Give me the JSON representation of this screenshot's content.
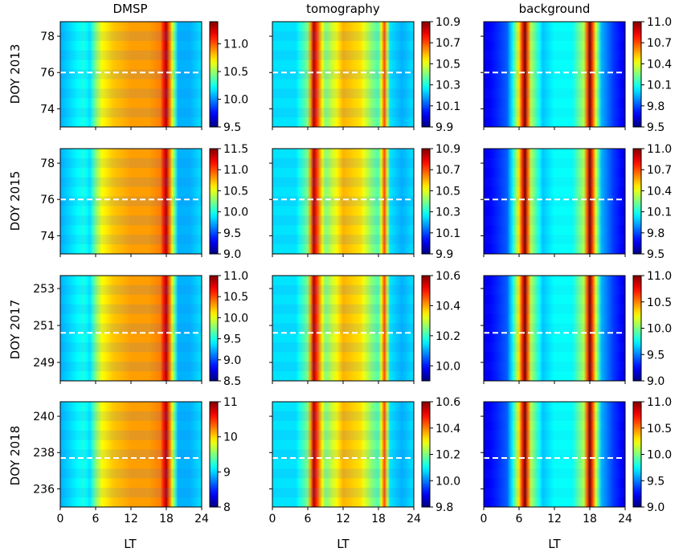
{
  "columns": [
    "DMSP",
    "tomography",
    "background"
  ],
  "rows": [
    "DOY 2013",
    "DOY 2015",
    "DOY 2017",
    "DOY 2018"
  ],
  "x_axis_label": "LT",
  "x_ticks": [
    0,
    6,
    12,
    18,
    24
  ],
  "chart_data": {
    "type": "heatmap",
    "xlabel": "LT",
    "xlim": [
      0,
      24
    ],
    "colormap": "jet",
    "row_yticks": [
      [
        74,
        76,
        78
      ],
      [
        74,
        76,
        78
      ],
      [
        249,
        251,
        253
      ],
      [
        236,
        238,
        240
      ]
    ],
    "row_ylim": [
      [
        73,
        78.8
      ],
      [
        73,
        78.8
      ],
      [
        248,
        253.7
      ],
      [
        235,
        240.8
      ]
    ],
    "dashed_line_y": [
      76,
      76,
      250.6,
      237.7
    ],
    "panels": [
      [
        {
          "column": "DMSP",
          "row": "DOY 2013",
          "cbar_ticks": [
            9.5,
            10.0,
            10.5,
            11.0
          ],
          "vmin": 9.5,
          "vmax": 11.4
        },
        {
          "column": "tomography",
          "row": "DOY 2013",
          "cbar_ticks": [
            9.9,
            10.1,
            10.3,
            10.5,
            10.7,
            10.9
          ],
          "vmin": 9.9,
          "vmax": 10.9
        },
        {
          "column": "background",
          "row": "DOY 2013",
          "cbar_ticks": [
            9.5,
            9.8,
            10.1,
            10.4,
            10.7,
            11.0
          ],
          "vmin": 9.5,
          "vmax": 11.0
        }
      ],
      [
        {
          "column": "DMSP",
          "row": "DOY 2015",
          "cbar_ticks": [
            9.0,
            9.5,
            10.0,
            10.5,
            11.0,
            11.5
          ],
          "vmin": 9.0,
          "vmax": 11.5
        },
        {
          "column": "tomography",
          "row": "DOY 2015",
          "cbar_ticks": [
            9.9,
            10.1,
            10.3,
            10.5,
            10.7,
            10.9
          ],
          "vmin": 9.9,
          "vmax": 10.9
        },
        {
          "column": "background",
          "row": "DOY 2015",
          "cbar_ticks": [
            9.5,
            9.8,
            10.1,
            10.4,
            10.7,
            11.0
          ],
          "vmin": 9.5,
          "vmax": 11.0
        }
      ],
      [
        {
          "column": "DMSP",
          "row": "DOY 2017",
          "cbar_ticks": [
            8.5,
            9.0,
            9.5,
            10.0,
            10.5,
            11.0
          ],
          "vmin": 8.5,
          "vmax": 11.0
        },
        {
          "column": "tomography",
          "row": "DOY 2017",
          "cbar_ticks": [
            10.0,
            10.2,
            10.4,
            10.6
          ],
          "vmin": 9.9,
          "vmax": 10.6
        },
        {
          "column": "background",
          "row": "DOY 2017",
          "cbar_ticks": [
            9.0,
            9.5,
            10.0,
            10.5,
            11.0
          ],
          "vmin": 9.0,
          "vmax": 11.0
        }
      ],
      [
        {
          "column": "DMSP",
          "row": "DOY 2018",
          "cbar_ticks": [
            8,
            9,
            10,
            11
          ],
          "vmin": 8,
          "vmax": 11
        },
        {
          "column": "tomography",
          "row": "DOY 2018",
          "cbar_ticks": [
            9.8,
            10.0,
            10.2,
            10.4,
            10.6
          ],
          "vmin": 9.8,
          "vmax": 10.6
        },
        {
          "column": "background",
          "row": "DOY 2018",
          "cbar_ticks": [
            9.0,
            9.5,
            10.0,
            10.5,
            11.0
          ],
          "vmin": 9.0,
          "vmax": 11.0
        }
      ]
    ],
    "profiles": {
      "DMSP": {
        "LT": [
          0,
          2,
          4,
          5,
          6,
          7,
          9,
          12,
          15,
          17,
          18,
          19,
          20,
          22,
          24
        ],
        "frac": [
          0.3,
          0.35,
          0.4,
          0.35,
          0.5,
          0.62,
          0.68,
          0.72,
          0.72,
          0.75,
          0.95,
          0.6,
          0.3,
          0.3,
          0.35
        ]
      },
      "tomography": {
        "LT": [
          0,
          2,
          4,
          6,
          7,
          9,
          12,
          15,
          17,
          18,
          19,
          20,
          22,
          24
        ],
        "frac": [
          0.35,
          0.35,
          0.35,
          0.5,
          0.95,
          0.5,
          0.7,
          0.65,
          0.5,
          0.45,
          0.8,
          0.35,
          0.3,
          0.35
        ]
      },
      "background": {
        "LT": [
          0,
          2,
          4,
          5,
          6,
          7,
          8,
          10,
          12,
          15,
          17,
          18,
          19,
          20,
          22,
          24
        ],
        "frac": [
          0.1,
          0.15,
          0.22,
          0.4,
          0.65,
          1.0,
          0.55,
          0.32,
          0.38,
          0.38,
          0.55,
          1.0,
          0.6,
          0.3,
          0.18,
          0.1
        ]
      }
    }
  }
}
